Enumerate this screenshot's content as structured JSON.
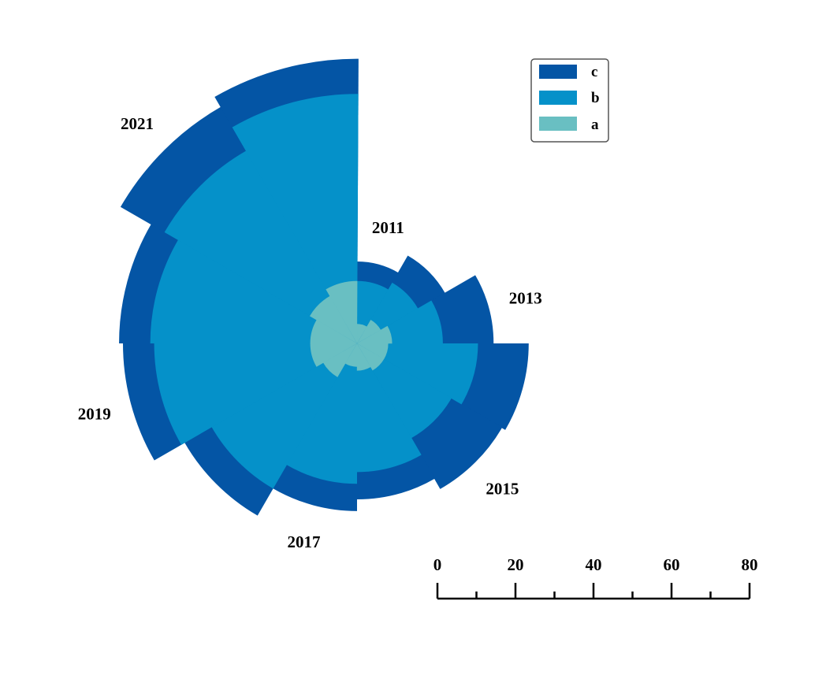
{
  "chart_data": {
    "type": "radial-stacked-bar",
    "start_year": 2011,
    "categories": [
      "2011",
      "2012",
      "2013",
      "2014",
      "2015",
      "2016",
      "2017",
      "2018",
      "2019",
      "2020",
      "2021",
      "2022"
    ],
    "category_labels": [
      "2011",
      "2013",
      "2015",
      "2017",
      "2019",
      "2021"
    ],
    "series": [
      {
        "name": "a",
        "color": "#69bfc2",
        "values": [
          5,
          7,
          9,
          8,
          8,
          7,
          6,
          10,
          12,
          12,
          14,
          16
        ]
      },
      {
        "name": "b",
        "color": "#0591c9",
        "values": [
          16,
          18,
          22,
          31,
          28,
          33,
          36,
          43,
          52,
          53,
          57,
          64
        ]
      },
      {
        "name": "c",
        "color": "#0455a5",
        "values": [
          21,
          26,
          35,
          44,
          43,
          40,
          43,
          51,
          60,
          61,
          70,
          73
        ]
      }
    ],
    "legend": {
      "position": "top-right",
      "order": [
        "c",
        "b",
        "a"
      ]
    },
    "scale_bar": {
      "ticks": [
        "0",
        "20",
        "40",
        "60",
        "80"
      ],
      "min": 0,
      "max": 80,
      "minor_step": 10
    }
  }
}
